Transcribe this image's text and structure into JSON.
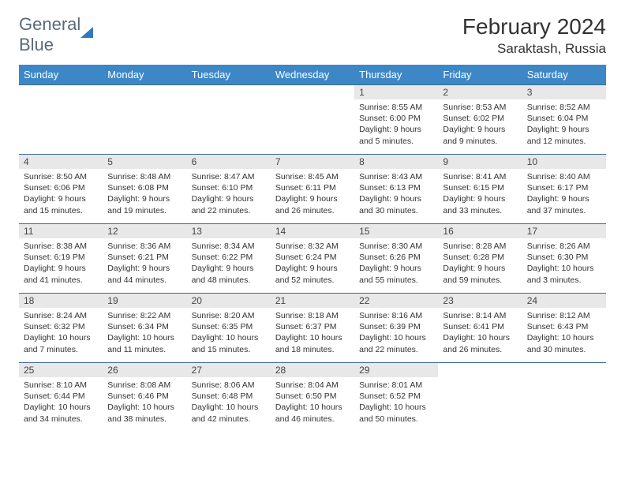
{
  "logo": {
    "part1": "General",
    "part2": "Blue"
  },
  "title": "February 2024",
  "location": "Saraktash, Russia",
  "colors": {
    "header_bg": "#3d87c7",
    "header_text": "#ffffff",
    "daynum_bg": "#e8e8e8",
    "row_border": "#3d6a9a",
    "page_bg": "#ffffff",
    "body_text": "#333333"
  },
  "typography": {
    "month_title_fontsize": 28,
    "location_fontsize": 17,
    "weekday_fontsize": 13,
    "daynum_fontsize": 12,
    "cell_fontsize": 10.5
  },
  "weekdays": [
    "Sunday",
    "Monday",
    "Tuesday",
    "Wednesday",
    "Thursday",
    "Friday",
    "Saturday"
  ],
  "weeks": [
    [
      null,
      null,
      null,
      null,
      {
        "n": "1",
        "sunrise": "8:55 AM",
        "sunset": "6:00 PM",
        "day_h": 9,
        "day_m": 5
      },
      {
        "n": "2",
        "sunrise": "8:53 AM",
        "sunset": "6:02 PM",
        "day_h": 9,
        "day_m": 9
      },
      {
        "n": "3",
        "sunrise": "8:52 AM",
        "sunset": "6:04 PM",
        "day_h": 9,
        "day_m": 12
      }
    ],
    [
      {
        "n": "4",
        "sunrise": "8:50 AM",
        "sunset": "6:06 PM",
        "day_h": 9,
        "day_m": 15
      },
      {
        "n": "5",
        "sunrise": "8:48 AM",
        "sunset": "6:08 PM",
        "day_h": 9,
        "day_m": 19
      },
      {
        "n": "6",
        "sunrise": "8:47 AM",
        "sunset": "6:10 PM",
        "day_h": 9,
        "day_m": 22
      },
      {
        "n": "7",
        "sunrise": "8:45 AM",
        "sunset": "6:11 PM",
        "day_h": 9,
        "day_m": 26
      },
      {
        "n": "8",
        "sunrise": "8:43 AM",
        "sunset": "6:13 PM",
        "day_h": 9,
        "day_m": 30
      },
      {
        "n": "9",
        "sunrise": "8:41 AM",
        "sunset": "6:15 PM",
        "day_h": 9,
        "day_m": 33
      },
      {
        "n": "10",
        "sunrise": "8:40 AM",
        "sunset": "6:17 PM",
        "day_h": 9,
        "day_m": 37
      }
    ],
    [
      {
        "n": "11",
        "sunrise": "8:38 AM",
        "sunset": "6:19 PM",
        "day_h": 9,
        "day_m": 41
      },
      {
        "n": "12",
        "sunrise": "8:36 AM",
        "sunset": "6:21 PM",
        "day_h": 9,
        "day_m": 44
      },
      {
        "n": "13",
        "sunrise": "8:34 AM",
        "sunset": "6:22 PM",
        "day_h": 9,
        "day_m": 48
      },
      {
        "n": "14",
        "sunrise": "8:32 AM",
        "sunset": "6:24 PM",
        "day_h": 9,
        "day_m": 52
      },
      {
        "n": "15",
        "sunrise": "8:30 AM",
        "sunset": "6:26 PM",
        "day_h": 9,
        "day_m": 55
      },
      {
        "n": "16",
        "sunrise": "8:28 AM",
        "sunset": "6:28 PM",
        "day_h": 9,
        "day_m": 59
      },
      {
        "n": "17",
        "sunrise": "8:26 AM",
        "sunset": "6:30 PM",
        "day_h": 10,
        "day_m": 3
      }
    ],
    [
      {
        "n": "18",
        "sunrise": "8:24 AM",
        "sunset": "6:32 PM",
        "day_h": 10,
        "day_m": 7
      },
      {
        "n": "19",
        "sunrise": "8:22 AM",
        "sunset": "6:34 PM",
        "day_h": 10,
        "day_m": 11
      },
      {
        "n": "20",
        "sunrise": "8:20 AM",
        "sunset": "6:35 PM",
        "day_h": 10,
        "day_m": 15
      },
      {
        "n": "21",
        "sunrise": "8:18 AM",
        "sunset": "6:37 PM",
        "day_h": 10,
        "day_m": 18
      },
      {
        "n": "22",
        "sunrise": "8:16 AM",
        "sunset": "6:39 PM",
        "day_h": 10,
        "day_m": 22
      },
      {
        "n": "23",
        "sunrise": "8:14 AM",
        "sunset": "6:41 PM",
        "day_h": 10,
        "day_m": 26
      },
      {
        "n": "24",
        "sunrise": "8:12 AM",
        "sunset": "6:43 PM",
        "day_h": 10,
        "day_m": 30
      }
    ],
    [
      {
        "n": "25",
        "sunrise": "8:10 AM",
        "sunset": "6:44 PM",
        "day_h": 10,
        "day_m": 34
      },
      {
        "n": "26",
        "sunrise": "8:08 AM",
        "sunset": "6:46 PM",
        "day_h": 10,
        "day_m": 38
      },
      {
        "n": "27",
        "sunrise": "8:06 AM",
        "sunset": "6:48 PM",
        "day_h": 10,
        "day_m": 42
      },
      {
        "n": "28",
        "sunrise": "8:04 AM",
        "sunset": "6:50 PM",
        "day_h": 10,
        "day_m": 46
      },
      {
        "n": "29",
        "sunrise": "8:01 AM",
        "sunset": "6:52 PM",
        "day_h": 10,
        "day_m": 50
      },
      null,
      null
    ]
  ]
}
